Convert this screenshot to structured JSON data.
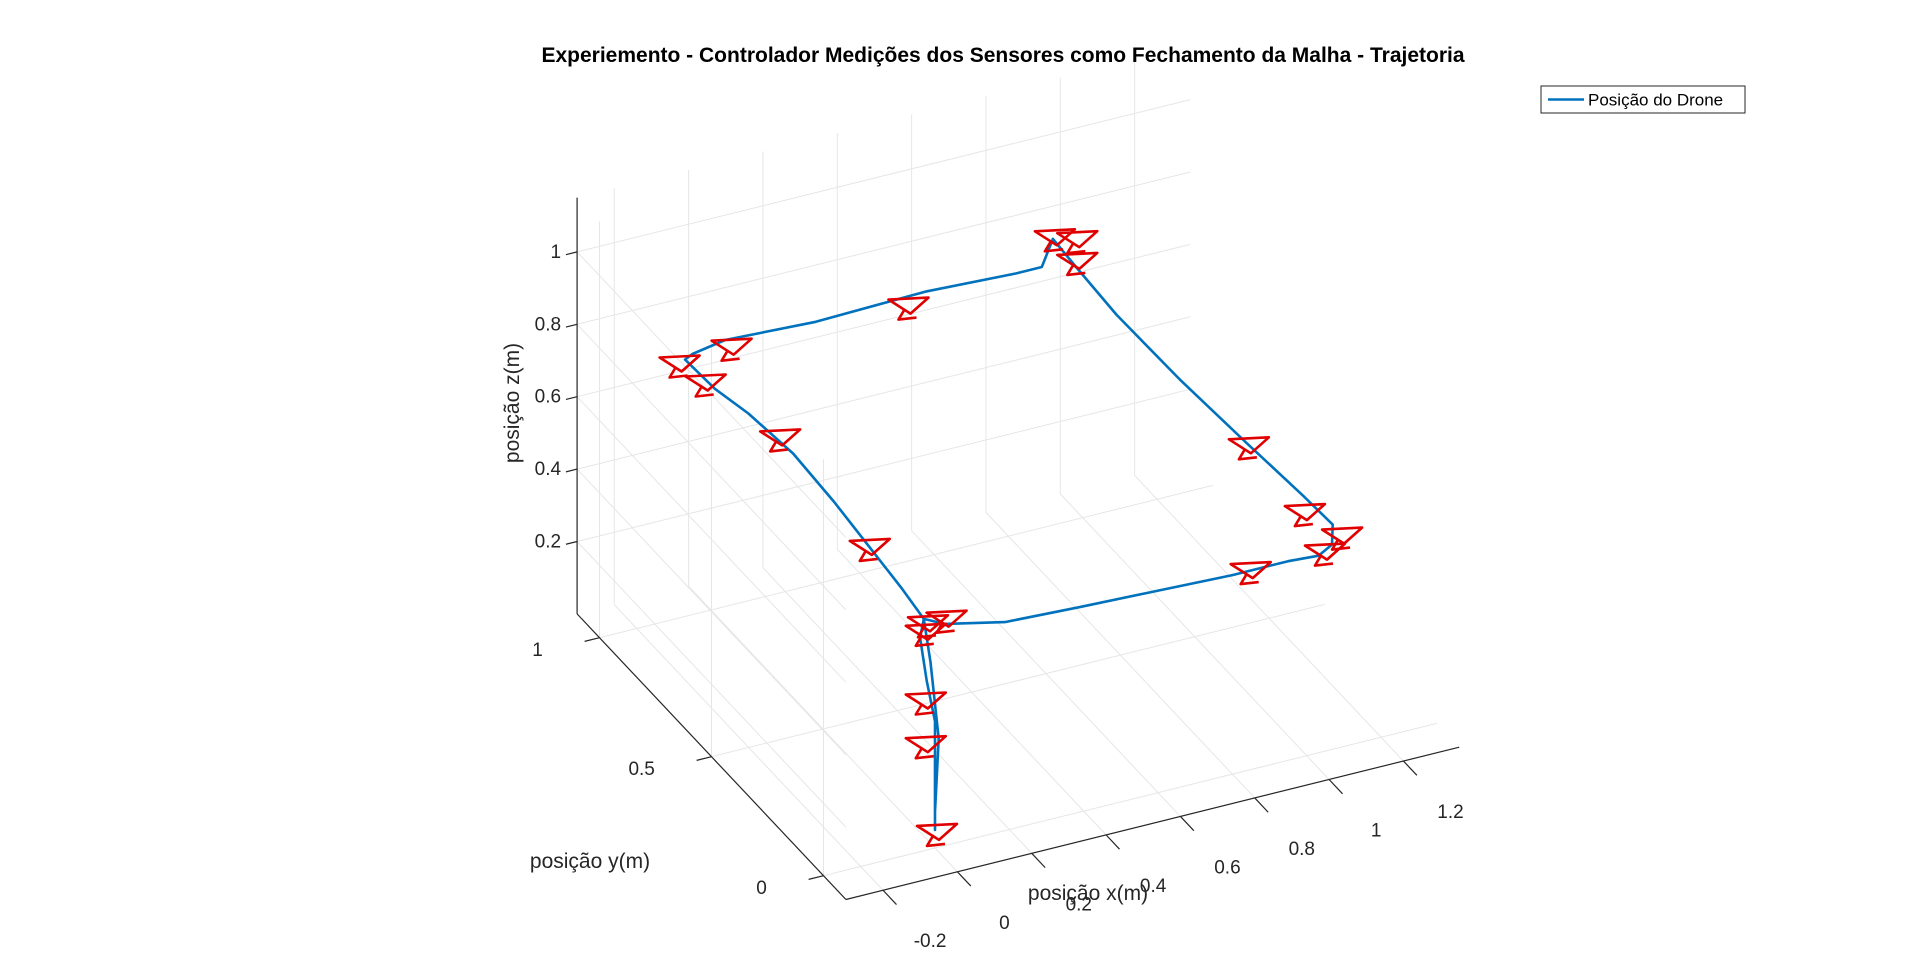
{
  "chart_data": {
    "type": "line3d",
    "title": "Experiemento - Controlador Medições dos Sensores como Fechamento da Malha - Trajetoria",
    "xlabel": "posição x(m)",
    "ylabel": "posição y(m)",
    "zlabel": "posição z(m)",
    "xticks": [
      "-0.2",
      "0",
      "0.2",
      "0.4",
      "0.6",
      "0.8",
      "1",
      "1.2"
    ],
    "yticks": [
      "0",
      "0.5",
      "1"
    ],
    "zticks": [
      "0.2",
      "0.4",
      "0.6",
      "0.8",
      "1"
    ],
    "xlim": [
      -0.3,
      1.35
    ],
    "ylim": [
      -0.1,
      1.1
    ],
    "zlim": [
      0,
      1.15
    ],
    "grid": true,
    "legend": {
      "position": "top-right",
      "entries": [
        "Posição do Drone"
      ]
    },
    "colors": {
      "trajectory": "#0072BD",
      "markers": "#E00000"
    },
    "series": [
      {
        "name": "Posição do Drone",
        "points": [
          [
            0,
            0,
            0.05
          ],
          [
            0,
            0,
            0.2
          ],
          [
            0,
            0,
            0.35
          ],
          [
            -0.01,
            0.02,
            0.45
          ],
          [
            -0.01,
            0.05,
            0.55
          ],
          [
            0,
            0.05,
            0.6
          ],
          [
            0.05,
            0.04,
            0.58
          ],
          [
            0.2,
            0.02,
            0.56
          ],
          [
            0.4,
            0.02,
            0.55
          ],
          [
            0.6,
            0.01,
            0.55
          ],
          [
            0.8,
            0,
            0.55
          ],
          [
            0.95,
            0,
            0.55
          ],
          [
            1.05,
            0.03,
            0.52
          ],
          [
            1.08,
            0.02,
            0.55
          ],
          [
            1.1,
            0.05,
            0.58
          ],
          [
            1.08,
            0.15,
            0.6
          ],
          [
            1.05,
            0.35,
            0.62
          ],
          [
            1.02,
            0.6,
            0.64
          ],
          [
            1,
            0.85,
            0.66
          ],
          [
            0.98,
            1,
            0.7
          ],
          [
            0.95,
            1.05,
            0.75
          ],
          [
            0.92,
            1.05,
            0.68
          ],
          [
            0.85,
            1.05,
            0.68
          ],
          [
            0.6,
            1.04,
            0.7
          ],
          [
            0.3,
            1.03,
            0.7
          ],
          [
            0.05,
            1.02,
            0.72
          ],
          [
            -0.05,
            1.0,
            0.72
          ],
          [
            -0.1,
            0.95,
            0.75
          ],
          [
            -0.08,
            0.85,
            0.73
          ],
          [
            -0.05,
            0.75,
            0.72
          ],
          [
            -0.02,
            0.6,
            0.7
          ],
          [
            0,
            0.45,
            0.66
          ],
          [
            0,
            0.3,
            0.64
          ],
          [
            0,
            0.15,
            0.62
          ],
          [
            0,
            0.05,
            0.6
          ],
          [
            0,
            0.02,
            0.5
          ],
          [
            0.01,
            0,
            0.3
          ],
          [
            0,
            0,
            0.1
          ]
        ]
      }
    ],
    "markers": [
      [
        0,
        0,
        0.05
      ],
      [
        -0.03,
        0,
        0.3
      ],
      [
        0,
        0.05,
        0.38
      ],
      [
        0,
        0.05,
        0.57
      ],
      [
        0,
        0.04,
        0.6
      ],
      [
        0.05,
        0.04,
        0.6
      ],
      [
        0.85,
        0.01,
        0.55
      ],
      [
        1.05,
        0.01,
        0.55
      ],
      [
        1.12,
        0.05,
        0.55
      ],
      [
        1.05,
        0.35,
        0.62
      ],
      [
        1.05,
        0.1,
        0.6
      ],
      [
        0.98,
        1,
        0.78
      ],
      [
        0.98,
        1,
        0.72
      ],
      [
        0.95,
        1.05,
        0.76
      ],
      [
        0.55,
        1.04,
        0.68
      ],
      [
        -0.08,
        0.9,
        0.72
      ],
      [
        -0.12,
        0.95,
        0.75
      ],
      [
        0.05,
        1.0,
        0.72
      ],
      [
        -0.03,
        0.65,
        0.72
      ],
      [
        0,
        0.3,
        0.64
      ]
    ]
  }
}
